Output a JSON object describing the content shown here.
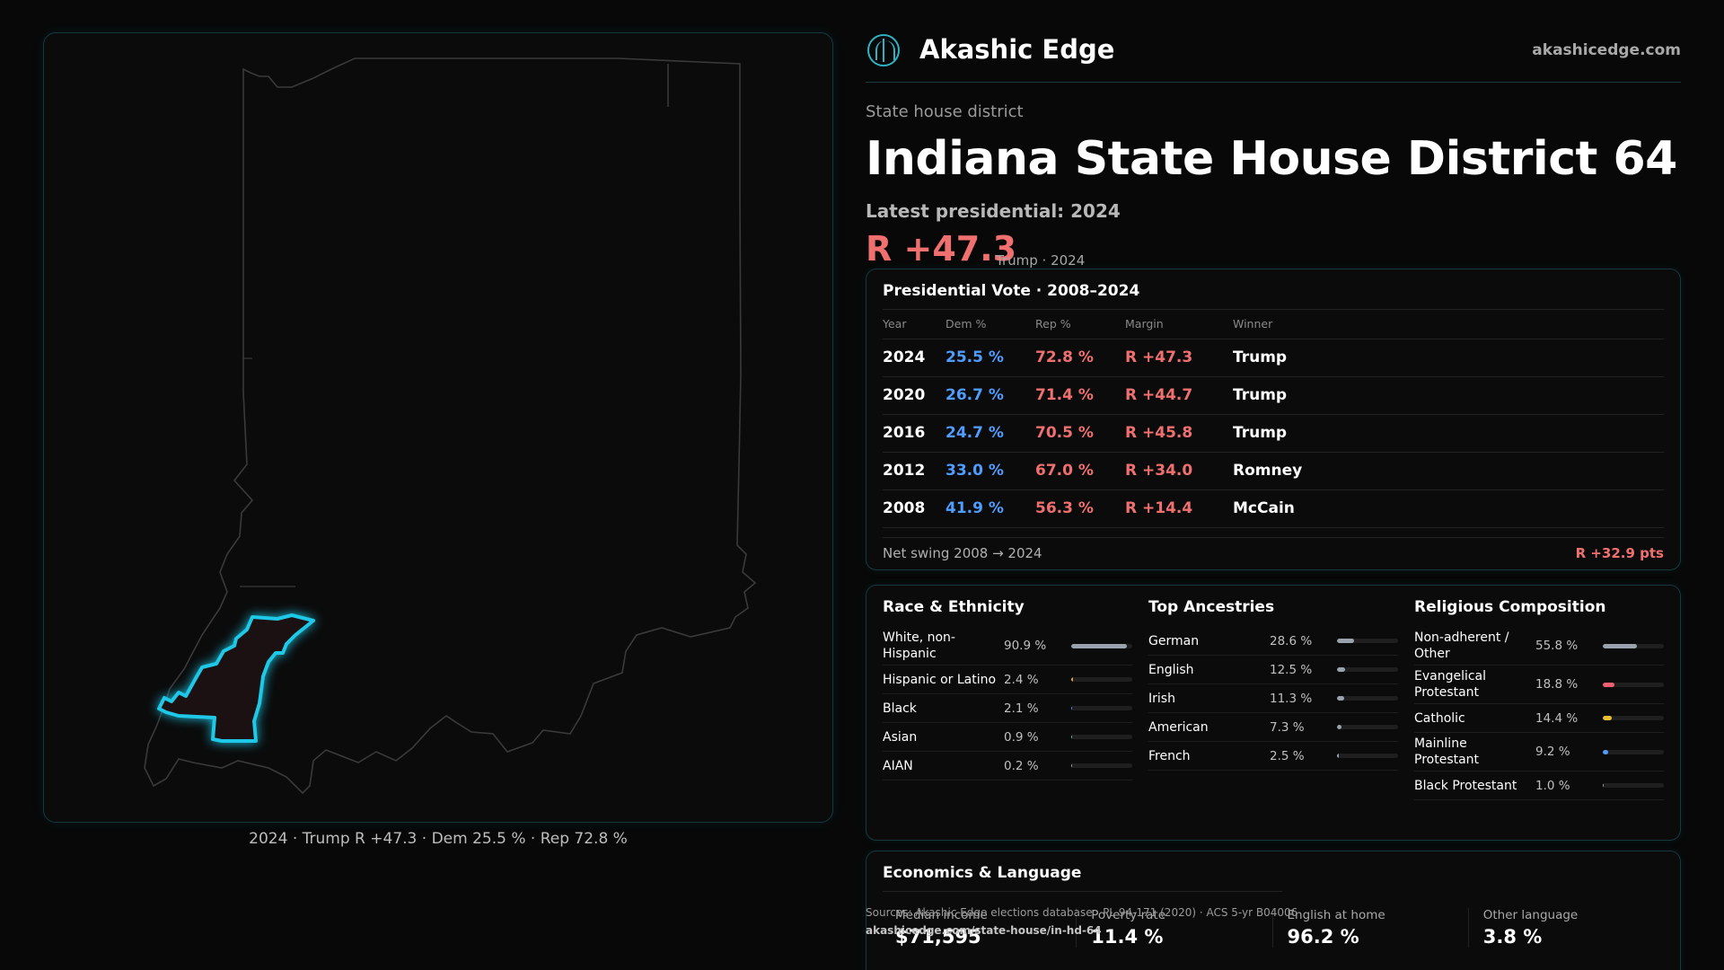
{
  "brand": {
    "name": "Akashic Edge",
    "site": "akashicedge.com"
  },
  "header": {
    "kicker": "State house district",
    "title": "Indiana State House District 64",
    "latest": "Latest presidential: 2024",
    "margin": "R +47.3",
    "margin_sub": "Trump · 2024"
  },
  "map": {
    "caption": "2024 · Trump R +47.3 · Dem 25.5 % · Rep 72.8 %"
  },
  "presidential": {
    "title": "Presidential Vote · 2008–2024",
    "headers": [
      "Year",
      "Dem %",
      "Rep %",
      "Margin",
      "Winner"
    ],
    "rows": [
      [
        "2024",
        "25.5 %",
        "72.8 %",
        "R +47.3",
        "Trump"
      ],
      [
        "2020",
        "26.7 %",
        "71.4 %",
        "R +44.7",
        "Trump"
      ],
      [
        "2016",
        "24.7 %",
        "70.5 %",
        "R +45.8",
        "Trump"
      ],
      [
        "2012",
        "33.0 %",
        "67.0 %",
        "R +34.0",
        "Romney"
      ],
      [
        "2008",
        "41.9 %",
        "56.3 %",
        "R +14.4",
        "McCain"
      ]
    ],
    "swing_label": "Net swing 2008 → 2024",
    "swing_value": "R +32.9 pts"
  },
  "race": {
    "title": "Race & Ethnicity",
    "rows": [
      {
        "label": "White, non-Hispanic",
        "pct": "90.9 %",
        "value": 90.9,
        "color": "#9aa3ad"
      },
      {
        "label": "Hispanic or Latino",
        "pct": "2.4 %",
        "value": 2.4,
        "color": "#e0a030"
      },
      {
        "label": "Black",
        "pct": "2.1 %",
        "value": 2.1,
        "color": "#6b7cff"
      },
      {
        "label": "Asian",
        "pct": "0.9 %",
        "value": 0.9,
        "color": "#3fc7a0"
      },
      {
        "label": "AIAN",
        "pct": "0.2 %",
        "value": 0.2,
        "color": "#9aa3ad"
      }
    ]
  },
  "ancestry": {
    "title": "Top Ancestries",
    "rows": [
      {
        "label": "German",
        "pct": "28.6 %",
        "value": 28.6,
        "color": "#9aa3ad"
      },
      {
        "label": "English",
        "pct": "12.5 %",
        "value": 12.5,
        "color": "#9aa3ad"
      },
      {
        "label": "Irish",
        "pct": "11.3 %",
        "value": 11.3,
        "color": "#9aa3ad"
      },
      {
        "label": "American",
        "pct": "7.3 %",
        "value": 7.3,
        "color": "#9aa3ad"
      },
      {
        "label": "French",
        "pct": "2.5 %",
        "value": 2.5,
        "color": "#9aa3ad"
      }
    ]
  },
  "religion": {
    "title": "Religious Composition",
    "rows": [
      {
        "label": "Non-adherent / Other",
        "pct": "55.8 %",
        "value": 55.8,
        "color": "#9aa3ad"
      },
      {
        "label": "Evangelical Protestant",
        "pct": "18.8 %",
        "value": 18.8,
        "color": "#f06070"
      },
      {
        "label": "Catholic",
        "pct": "14.4 %",
        "value": 14.4,
        "color": "#e8c030"
      },
      {
        "label": "Mainline Protestant",
        "pct": "9.2 %",
        "value": 9.2,
        "color": "#4f9dff"
      },
      {
        "label": "Black Protestant",
        "pct": "1.0 %",
        "value": 1.0,
        "color": "#9aa3ad"
      }
    ]
  },
  "economics": {
    "title": "Economics & Language",
    "cells": [
      {
        "label": "Median income",
        "value": "$71,595"
      },
      {
        "label": "Poverty rate",
        "value": "11.4 %"
      },
      {
        "label": "English at home",
        "value": "96.2 %"
      },
      {
        "label": "Other language",
        "value": "3.8 %"
      }
    ]
  },
  "sources": {
    "text": "Sources: Akashic Edge elections database · PL 94-171 (2020) · ACS 5-yr B04006",
    "url": "akashicedge.com/state-house/in-hd-64"
  }
}
